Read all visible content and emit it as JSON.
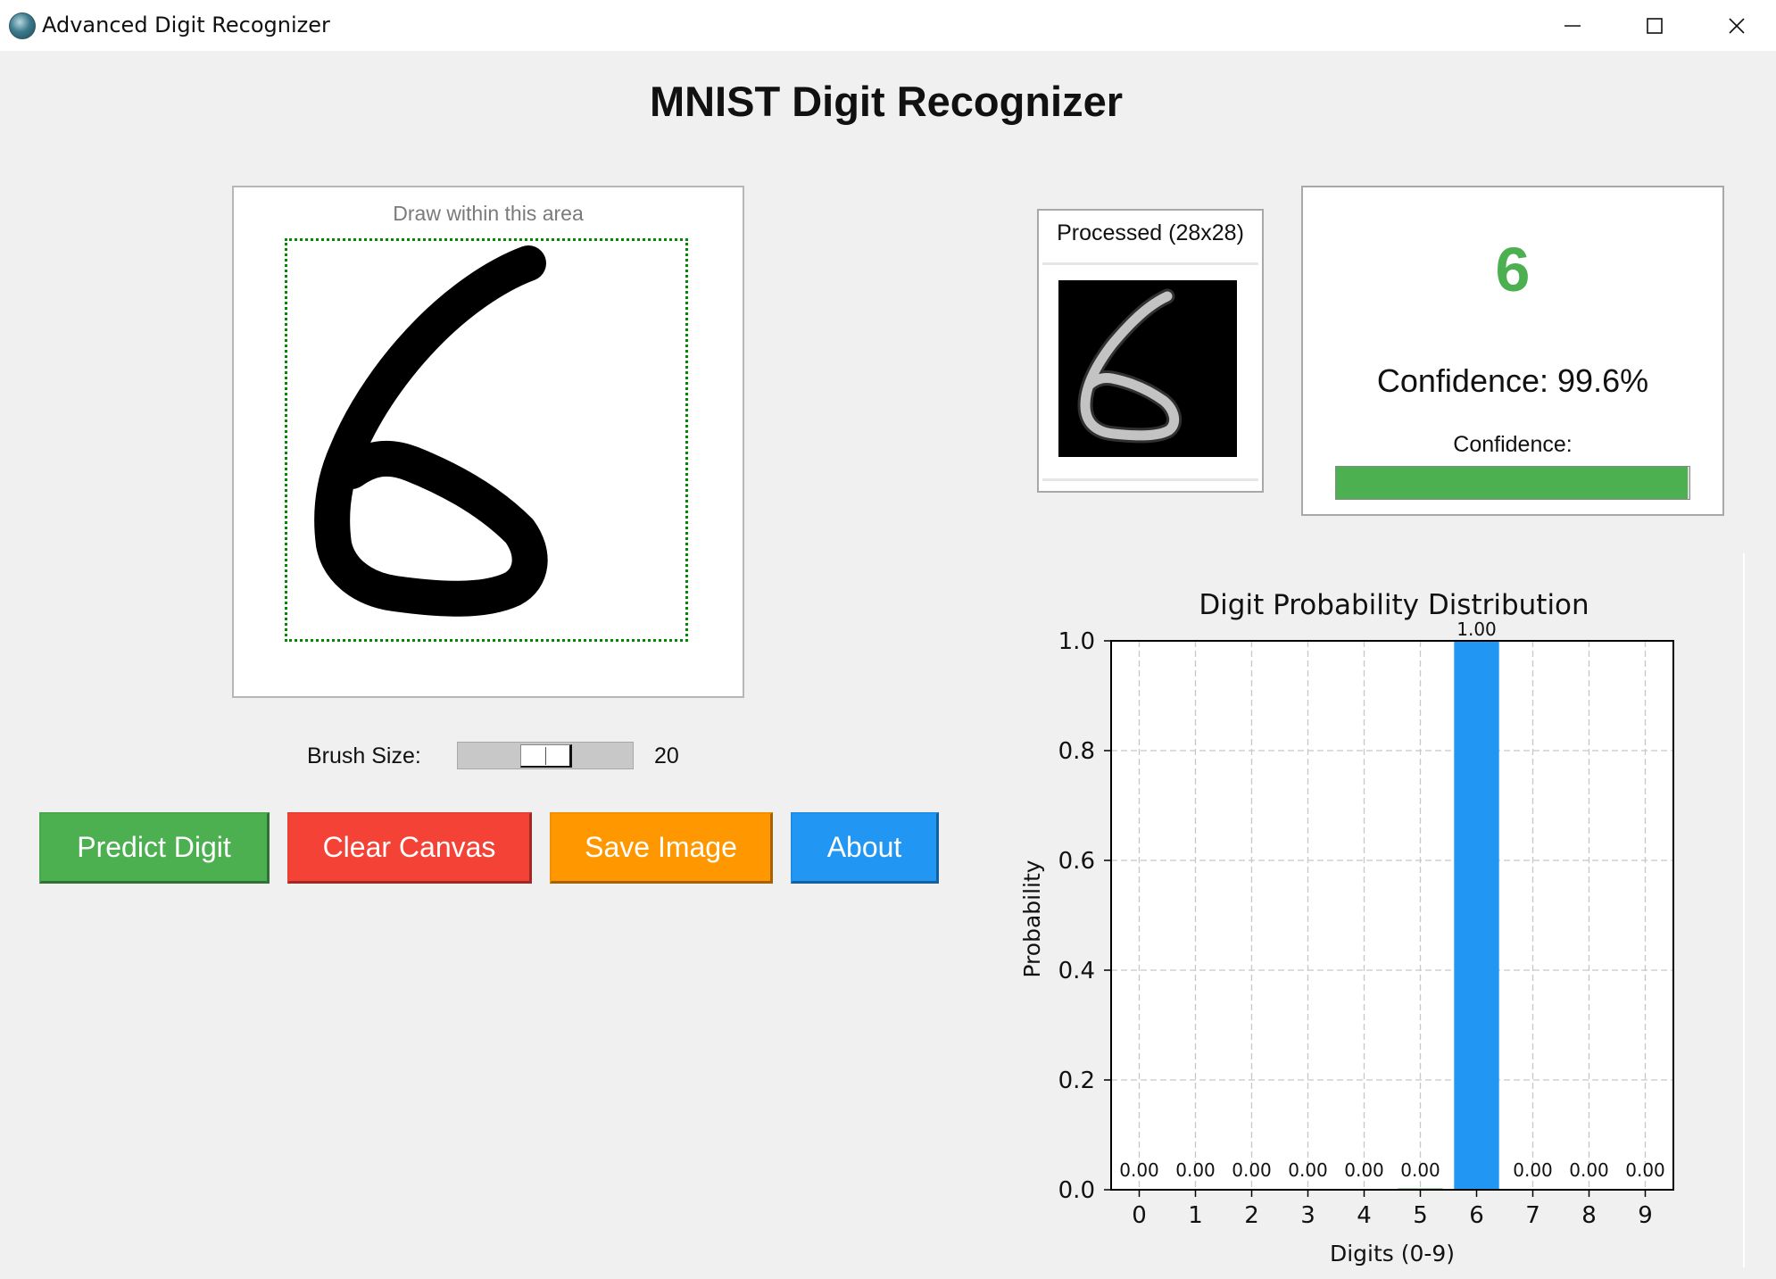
{
  "window": {
    "title": "Advanced Digit Recognizer",
    "icon": "app-icon",
    "controls": [
      "minimize-icon",
      "maximize-icon",
      "close-icon"
    ]
  },
  "app": {
    "heading": "MNIST Digit Recognizer"
  },
  "canvas": {
    "hint": "Draw within this area",
    "border_color": "#008a00"
  },
  "brush": {
    "label": "Brush Size:",
    "value": "20",
    "level_fraction": 0.5
  },
  "buttons": {
    "predict": "Predict Digit",
    "clear": "Clear Canvas",
    "save": "Save Image",
    "about": "About"
  },
  "processed": {
    "title": "Processed (28x28)"
  },
  "prediction": {
    "digit": "6",
    "confidence_text": "Confidence: 99.6%",
    "confidence_label": "Confidence:",
    "confidence_fraction": 0.996,
    "digit_color": "#4caf50",
    "bar_color": "#4caf50"
  },
  "colors": {
    "predict": "#4caf50",
    "clear": "#f44336",
    "save": "#ff9800",
    "about": "#2196f3",
    "bar_highlight": "#2196f3",
    "bar_normal": "#4caf50"
  },
  "chart_data": {
    "type": "bar",
    "title": "Digit Probability Distribution",
    "xlabel": "Digits (0-9)",
    "ylabel": "Probability",
    "categories": [
      "0",
      "1",
      "2",
      "3",
      "4",
      "5",
      "6",
      "7",
      "8",
      "9"
    ],
    "values": [
      0.0,
      0.0,
      0.0,
      0.0,
      0.0,
      0.0,
      1.0,
      0.0,
      0.0,
      0.0
    ],
    "value_labels": [
      "0.00",
      "0.00",
      "0.00",
      "0.00",
      "0.00",
      "0.00",
      "1.00",
      "0.00",
      "0.00",
      "0.00"
    ],
    "highlight_index": 6,
    "ylim": [
      0.0,
      1.0
    ],
    "yticks": [
      "0.0",
      "0.2",
      "0.4",
      "0.6",
      "0.8",
      "1.0"
    ],
    "grid": true
  }
}
